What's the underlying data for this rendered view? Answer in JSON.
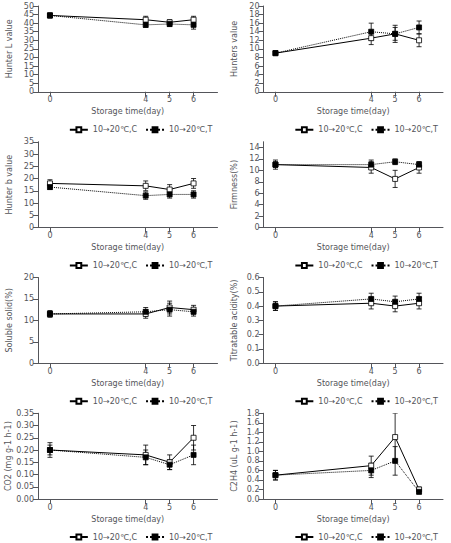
{
  "chart_data": [
    {
      "type": "line",
      "xlabel": "Storage time(day)",
      "ylabel": "Hunter L value",
      "x": [
        0,
        4,
        5,
        6
      ],
      "xlim": [
        -0.5,
        7
      ],
      "xticks": [
        0,
        4,
        5,
        6
      ],
      "ylim": [
        0,
        50
      ],
      "yticks": [
        0,
        5,
        10,
        15,
        20,
        25,
        30,
        35,
        40,
        45,
        50
      ],
      "grid": false,
      "legend": "lower right",
      "series": [
        {
          "name": "10→20℃,C",
          "color": "#000000",
          "marker": "square_open",
          "line_style": "solid",
          "values": [
            44.5,
            42.0,
            40.5,
            42.0
          ],
          "error": [
            1.5,
            2.0,
            1.5,
            2.0
          ]
        },
        {
          "name": "10→20℃,T",
          "color": "#000000",
          "marker": "square",
          "line_style": "dotted",
          "values": [
            44.5,
            39.0,
            39.5,
            39.0
          ],
          "error": [
            1.0,
            1.5,
            1.5,
            2.5
          ]
        }
      ]
    },
    {
      "type": "line",
      "xlabel": "Storage time(day)",
      "ylabel": "Hunters value",
      "x": [
        0,
        4,
        5,
        6
      ],
      "xlim": [
        -0.5,
        7
      ],
      "xticks": [
        0,
        4,
        5,
        6
      ],
      "ylim": [
        0,
        20
      ],
      "yticks": [
        0,
        2,
        4,
        6,
        8,
        10,
        12,
        14,
        16,
        18,
        20
      ],
      "grid": false,
      "legend": "lower right",
      "series": [
        {
          "name": "10→20℃,C",
          "color": "#000000",
          "marker": "square_open",
          "line_style": "solid",
          "values": [
            9.0,
            12.5,
            13.5,
            12.0
          ],
          "error": [
            0.5,
            1.5,
            1.5,
            1.5
          ]
        },
        {
          "name": "10→20℃,T",
          "color": "#000000",
          "marker": "square",
          "line_style": "dotted",
          "values": [
            9.0,
            14.0,
            13.5,
            15.0
          ],
          "error": [
            0.5,
            2.0,
            2.0,
            1.5
          ]
        }
      ]
    },
    {
      "type": "line",
      "xlabel": "Storage time(day)",
      "ylabel": "Hunter b value",
      "x": [
        0,
        4,
        5,
        6
      ],
      "xlim": [
        -0.5,
        7
      ],
      "xticks": [
        0,
        4,
        5,
        6
      ],
      "ylim": [
        0,
        35
      ],
      "yticks": [
        0,
        5,
        10,
        15,
        20,
        25,
        30,
        35
      ],
      "grid": false,
      "legend": "lower right",
      "series": [
        {
          "name": "10→20℃,C",
          "color": "#000000",
          "marker": "square_open",
          "line_style": "solid",
          "values": [
            18.0,
            17.0,
            15.5,
            18.0
          ],
          "error": [
            1.5,
            2.0,
            2.0,
            2.0
          ]
        },
        {
          "name": "10→20℃,T",
          "color": "#000000",
          "marker": "square",
          "line_style": "dotted",
          "values": [
            16.5,
            13.0,
            13.5,
            13.5
          ],
          "error": [
            1.0,
            1.5,
            1.5,
            1.5
          ]
        }
      ]
    },
    {
      "type": "line",
      "xlabel": "Storage time(day)",
      "ylabel": "Firmness(%)",
      "x": [
        0,
        4,
        5,
        6
      ],
      "xlim": [
        -0.5,
        7
      ],
      "xticks": [
        0,
        4,
        5,
        6
      ],
      "ylim": [
        0,
        15
      ],
      "yticks": [
        0,
        2,
        4,
        6,
        8,
        10,
        12,
        14
      ],
      "grid": false,
      "legend": "lower right",
      "series": [
        {
          "name": "10→20℃,C",
          "color": "#000000",
          "marker": "square_open",
          "line_style": "solid",
          "values": [
            11.0,
            10.5,
            8.5,
            10.5
          ],
          "error": [
            0.8,
            1.0,
            1.5,
            1.0
          ]
        },
        {
          "name": "10→20℃,T",
          "color": "#000000",
          "marker": "square",
          "line_style": "dotted",
          "values": [
            11.0,
            11.0,
            11.5,
            11.0
          ],
          "error": [
            0.5,
            0.8,
            0.5,
            0.5
          ]
        }
      ]
    },
    {
      "type": "line",
      "xlabel": "Storage time(day)",
      "ylabel": "Soluble solid(%)",
      "x": [
        0,
        4,
        5,
        6
      ],
      "xlim": [
        -0.5,
        7
      ],
      "xticks": [
        0,
        4,
        5,
        6
      ],
      "ylim": [
        0,
        20
      ],
      "yticks": [
        0,
        5,
        10,
        15,
        20
      ],
      "grid": false,
      "legend": "lower right",
      "series": [
        {
          "name": "10→20℃,C",
          "color": "#000000",
          "marker": "square_open",
          "line_style": "solid",
          "values": [
            11.5,
            11.5,
            13.0,
            12.5
          ],
          "error": [
            0.8,
            1.0,
            1.5,
            1.0
          ]
        },
        {
          "name": "10→20℃,T",
          "color": "#000000",
          "marker": "square",
          "line_style": "dotted",
          "values": [
            11.5,
            12.0,
            12.5,
            12.0
          ],
          "error": [
            0.5,
            1.0,
            1.5,
            1.0
          ]
        }
      ]
    },
    {
      "type": "line",
      "xlabel": "Storage time(day)",
      "ylabel": "Titratable acidity(%)",
      "x": [
        0,
        4,
        5,
        6
      ],
      "xlim": [
        -0.5,
        7
      ],
      "xticks": [
        0,
        4,
        5,
        6
      ],
      "ylim": [
        0,
        0.6
      ],
      "yticks": [
        {
          "value": 0,
          "label": "0.0"
        },
        0.1,
        0.2,
        0.3,
        0.4,
        0.5,
        0.6
      ],
      "grid": false,
      "legend": "lower right",
      "series": [
        {
          "name": "10→20℃,C",
          "color": "#000000",
          "marker": "square_open",
          "line_style": "solid",
          "values": [
            0.4,
            0.42,
            0.4,
            0.42
          ],
          "error": [
            0.03,
            0.04,
            0.04,
            0.04
          ]
        },
        {
          "name": "10→20℃,T",
          "color": "#000000",
          "marker": "square",
          "line_style": "dotted",
          "values": [
            0.4,
            0.45,
            0.43,
            0.45
          ],
          "error": [
            0.03,
            0.04,
            0.04,
            0.04
          ]
        }
      ]
    },
    {
      "type": "line",
      "xlabel": "Storage time(day)",
      "ylabel": "CO2 (mg g-1 h-1)",
      "x": [
        0,
        4,
        5,
        6
      ],
      "xlim": [
        -0.5,
        7
      ],
      "xticks": [
        0,
        4,
        5,
        6
      ],
      "ylim": [
        0,
        0.35
      ],
      "yticks": [
        {
          "value": 0,
          "label": "0.00"
        },
        0.05,
        {
          "value": 0.1,
          "label": "0.10"
        },
        0.15,
        {
          "value": 0.2,
          "label": "0.20"
        },
        0.25,
        {
          "value": 0.3,
          "label": "0.30"
        },
        0.35
      ],
      "grid": false,
      "legend": "lower right",
      "series": [
        {
          "name": "10→20℃,C",
          "color": "#000000",
          "marker": "square_open",
          "line_style": "solid",
          "values": [
            0.2,
            0.18,
            0.15,
            0.25
          ],
          "error": [
            0.03,
            0.04,
            0.03,
            0.05
          ]
        },
        {
          "name": "10→20℃,T",
          "color": "#000000",
          "marker": "square",
          "line_style": "dotted",
          "values": [
            0.2,
            0.17,
            0.14,
            0.18
          ],
          "error": [
            0.02,
            0.03,
            0.02,
            0.04
          ]
        }
      ]
    },
    {
      "type": "line",
      "xlabel": "Storage time(day)",
      "ylabel": "C2H4 (uL g-1 h-1)",
      "x": [
        0,
        4,
        5,
        6
      ],
      "xlim": [
        -0.5,
        7
      ],
      "xticks": [
        0,
        4,
        5,
        6
      ],
      "ylim": [
        0,
        1.8
      ],
      "yticks": [
        {
          "value": 0,
          "label": "0.0"
        },
        0.2,
        0.4,
        0.6,
        0.8,
        {
          "value": 1,
          "label": "1.0"
        },
        1.2,
        1.4,
        1.6,
        1.8
      ],
      "grid": false,
      "legend": "lower right",
      "series": [
        {
          "name": "10→20℃,C",
          "color": "#000000",
          "marker": "square_open",
          "line_style": "solid",
          "values": [
            0.5,
            0.7,
            1.3,
            0.2
          ],
          "error": [
            0.1,
            0.2,
            0.5,
            0.05
          ]
        },
        {
          "name": "10→20℃,T",
          "color": "#000000",
          "marker": "square",
          "line_style": "dotted",
          "values": [
            0.5,
            0.6,
            0.8,
            0.15
          ],
          "error": [
            0.1,
            0.15,
            0.3,
            0.04
          ]
        }
      ]
    }
  ]
}
